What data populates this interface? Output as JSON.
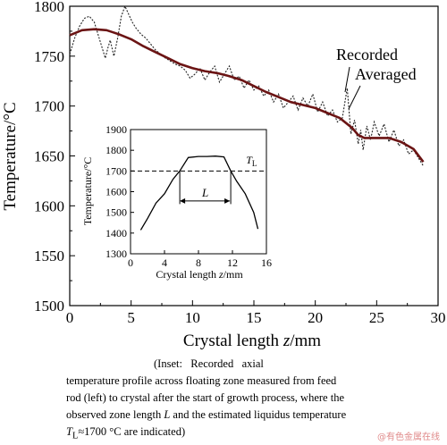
{
  "chart_data": [
    {
      "type": "line",
      "xlabel_prefix": "Crystal length ",
      "xlabel_var": "z",
      "xlabel_unit": "/mm",
      "ylabel": "Temperature/°C",
      "xlim": [
        0,
        30
      ],
      "ylim": [
        1500,
        1800
      ],
      "xticks": [
        0,
        5,
        10,
        15,
        20,
        25,
        30
      ],
      "yticks": [
        1500,
        1550,
        1600,
        1650,
        1700,
        1750,
        1800
      ],
      "grid": false,
      "annotations": [
        "Recorded",
        "Averaged"
      ],
      "series": [
        {
          "name": "Recorded",
          "style": "dotted",
          "color": "#222222",
          "x": [
            0.0,
            0.4,
            0.8,
            1.2,
            1.6,
            2.0,
            2.3,
            2.6,
            2.9,
            3.1,
            3.3,
            3.6,
            3.9,
            4.2,
            4.5,
            4.8,
            5.1,
            5.4,
            5.8,
            6.2,
            6.6,
            7.0,
            7.4,
            7.8,
            8.2,
            8.6,
            9.0,
            9.4,
            9.8,
            10.2,
            10.6,
            11.0,
            11.4,
            11.8,
            12.2,
            12.6,
            13.0,
            13.4,
            13.8,
            14.2,
            14.6,
            15.0,
            15.4,
            15.8,
            16.2,
            16.6,
            17.0,
            17.4,
            17.8,
            18.2,
            18.6,
            19.0,
            19.4,
            19.8,
            20.2,
            20.6,
            21.0,
            21.4,
            21.8,
            22.2,
            22.6,
            22.9,
            23.2,
            23.5,
            23.7,
            23.9,
            24.2,
            24.5,
            24.8,
            25.2,
            25.6,
            26.0,
            26.4,
            26.8,
            27.2,
            27.6,
            28.0,
            28.4,
            28.8
          ],
          "values": [
            1752,
            1768,
            1780,
            1788,
            1790,
            1784,
            1772,
            1760,
            1748,
            1758,
            1766,
            1750,
            1768,
            1790,
            1800,
            1792,
            1784,
            1778,
            1772,
            1768,
            1762,
            1756,
            1752,
            1748,
            1745,
            1742,
            1740,
            1736,
            1728,
            1732,
            1738,
            1726,
            1734,
            1740,
            1724,
            1732,
            1740,
            1726,
            1730,
            1718,
            1726,
            1716,
            1720,
            1710,
            1716,
            1704,
            1712,
            1698,
            1704,
            1710,
            1696,
            1708,
            1700,
            1712,
            1694,
            1704,
            1690,
            1696,
            1684,
            1688,
            1718,
            1672,
            1686,
            1662,
            1676,
            1656,
            1680,
            1666,
            1684,
            1670,
            1682,
            1664,
            1676,
            1660,
            1666,
            1652,
            1656,
            1648,
            1640
          ]
        },
        {
          "name": "Averaged",
          "style": "solid",
          "color": "#6b1414",
          "x": [
            0.0,
            1.0,
            2.0,
            3.0,
            4.0,
            5.0,
            6.0,
            7.0,
            8.0,
            9.0,
            10.0,
            11.0,
            12.0,
            13.0,
            14.0,
            15.0,
            16.0,
            17.0,
            18.0,
            19.0,
            20.0,
            21.0,
            22.0,
            23.0,
            23.5,
            24.0,
            25.0,
            26.0,
            27.0,
            28.0,
            28.8
          ],
          "values": [
            1771,
            1776,
            1777,
            1776,
            1772,
            1767,
            1760,
            1754,
            1748,
            1742,
            1738,
            1735,
            1733,
            1730,
            1726,
            1720,
            1714,
            1709,
            1704,
            1701,
            1698,
            1693,
            1688,
            1678,
            1671,
            1668,
            1668,
            1668,
            1664,
            1657,
            1644
          ]
        }
      ]
    },
    {
      "type": "line",
      "xlabel_prefix": "Crystal length ",
      "xlabel_var": "z",
      "xlabel_unit": "/mm",
      "ylabel": "Temperature/°C",
      "xlim": [
        0,
        16
      ],
      "ylim": [
        1300,
        1900
      ],
      "xticks": [
        0,
        4,
        8,
        12,
        16
      ],
      "yticks": [
        1300,
        1400,
        1500,
        1600,
        1700,
        1800,
        1900
      ],
      "grid": false,
      "liquidus": 1700,
      "liquidus_label": "T",
      "liquidus_sub": "L",
      "zone_label": "L",
      "zone_x": [
        5.8,
        11.8
      ],
      "series": [
        {
          "name": "Profile",
          "style": "solid",
          "color": "#000000",
          "x": [
            1.2,
            2.0,
            3.0,
            4.0,
            5.0,
            5.8,
            6.8,
            8.0,
            9.0,
            10.0,
            11.0,
            11.8,
            12.5,
            13.5,
            14.5,
            15.0
          ],
          "values": [
            1415,
            1470,
            1545,
            1590,
            1660,
            1700,
            1765,
            1770,
            1770,
            1772,
            1768,
            1700,
            1650,
            1590,
            1500,
            1420
          ]
        }
      ]
    }
  ],
  "caption": {
    "line1": "(Inset:   Recorded   axial",
    "line2": "temperature profile across floating zone measured from feed",
    "line3": "rod (left) to crystal after the start of growth process, where the",
    "line4_a": "observed zone length ",
    "line4_var": "L",
    "line4_b": " and the estimated liquidus temperature",
    "line5_var": "T",
    "line5_sub": "L",
    "line5_b": "≈1700 °C are indicated)"
  },
  "watermark": "@有色金属在线"
}
